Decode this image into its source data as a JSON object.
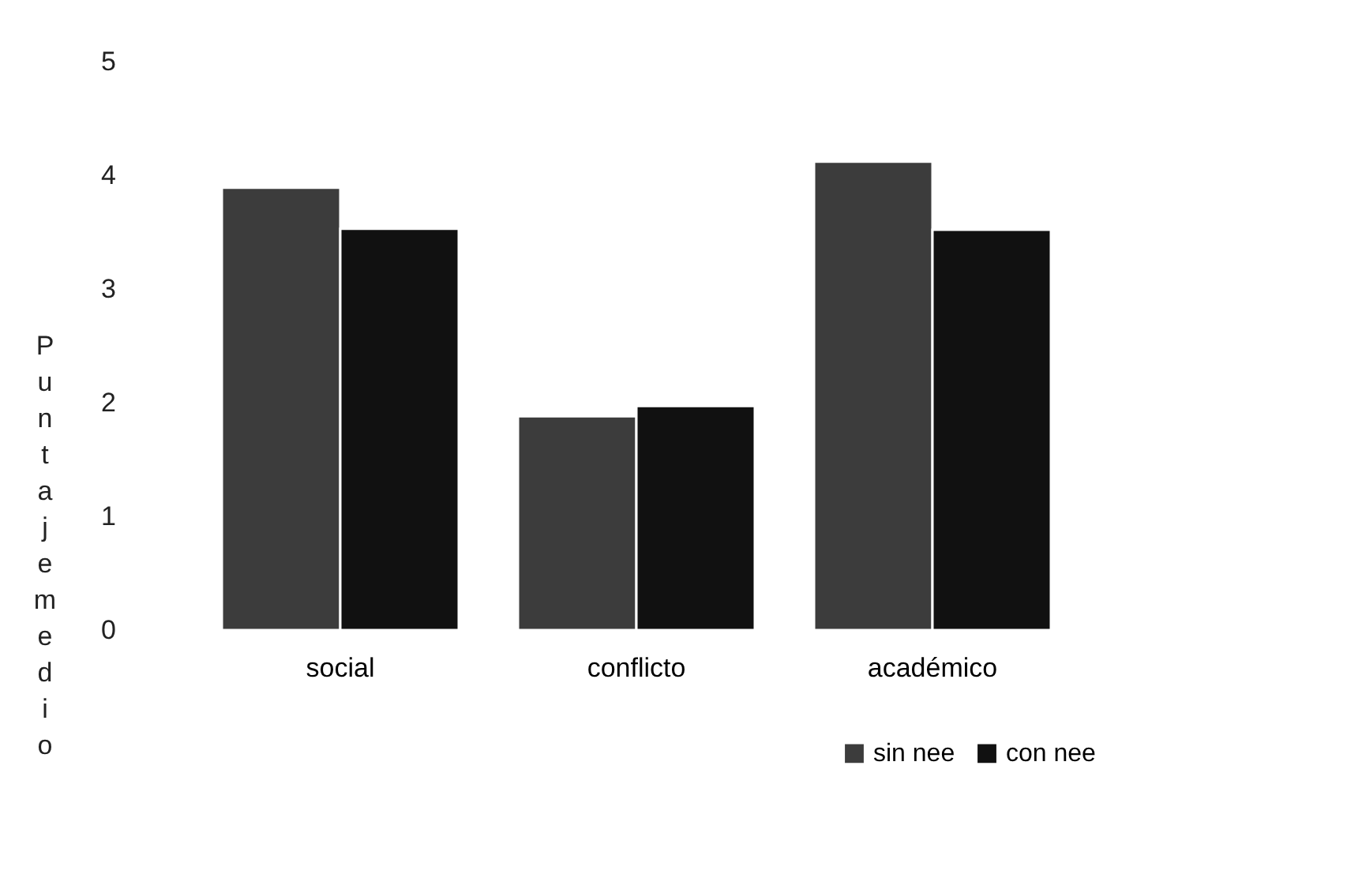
{
  "chart_data": {
    "type": "bar",
    "ylabel": "Puntaje medio",
    "categories": [
      "social",
      "conflicto",
      "académico"
    ],
    "series": [
      {
        "name": "sin nee",
        "color": "#3c3c3c",
        "values": [
          3.89,
          1.88,
          4.12
        ]
      },
      {
        "name": "con nee",
        "color": "#111111",
        "values": [
          3.53,
          1.97,
          3.52
        ]
      }
    ],
    "ylim": [
      0,
      5
    ],
    "yticks": [
      0,
      1,
      2,
      3,
      4,
      5
    ],
    "grid": false,
    "legend": "bottom right"
  }
}
